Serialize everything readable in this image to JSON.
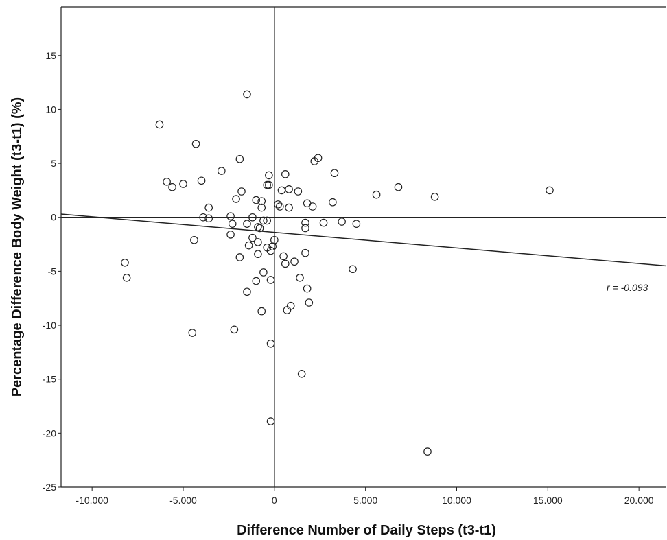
{
  "chart_data": {
    "type": "scatter",
    "xlabel": "Difference Number of Daily Steps (t3-t1)",
    "ylabel": "Percentage Difference Body Weight (t3-t1) (%)",
    "xlim": [
      -11700,
      21500
    ],
    "ylim": [
      -25,
      19.5
    ],
    "x_ticks": [
      -10000,
      -5000,
      0,
      5000,
      10000,
      15000,
      20000
    ],
    "x_tick_labels": [
      "-10.000",
      "-5.000",
      "0",
      "5.000",
      "10.000",
      "15.000",
      "20.000"
    ],
    "y_ticks": [
      -25,
      -20,
      -15,
      -10,
      -5,
      0,
      5,
      10,
      15
    ],
    "y_tick_labels": [
      "-25",
      "-20",
      "-15",
      "-10",
      "-5",
      "0",
      "5",
      "10",
      "15"
    ],
    "reference_lines": {
      "x": 0,
      "y": 0
    },
    "regression_line": {
      "x": [
        -11700,
        21500
      ],
      "y": [
        0.3,
        -4.5
      ]
    },
    "annotation": "r = -0.093",
    "points": [
      {
        "x": -6300,
        "y": 8.6
      },
      {
        "x": -4300,
        "y": 6.8
      },
      {
        "x": -5900,
        "y": 3.3
      },
      {
        "x": -5600,
        "y": 2.8
      },
      {
        "x": -5000,
        "y": 3.1
      },
      {
        "x": -4000,
        "y": 3.4
      },
      {
        "x": -2900,
        "y": 4.3
      },
      {
        "x": -1900,
        "y": 5.4
      },
      {
        "x": -1500,
        "y": 11.4
      },
      {
        "x": -1800,
        "y": 2.4
      },
      {
        "x": -2100,
        "y": 1.7
      },
      {
        "x": -3600,
        "y": 0.9
      },
      {
        "x": -3900,
        "y": 0.0
      },
      {
        "x": -3600,
        "y": -0.1
      },
      {
        "x": -2400,
        "y": 0.1
      },
      {
        "x": -2300,
        "y": -0.6
      },
      {
        "x": -4400,
        "y": -2.1
      },
      {
        "x": -2400,
        "y": -1.6
      },
      {
        "x": -1500,
        "y": -0.6
      },
      {
        "x": -1200,
        "y": 0.0
      },
      {
        "x": -1000,
        "y": 1.6
      },
      {
        "x": -700,
        "y": 1.5
      },
      {
        "x": -700,
        "y": 0.9
      },
      {
        "x": -600,
        "y": -0.3
      },
      {
        "x": -400,
        "y": -0.3
      },
      {
        "x": -900,
        "y": -0.9
      },
      {
        "x": -800,
        "y": -1.0
      },
      {
        "x": -1200,
        "y": -1.9
      },
      {
        "x": -1400,
        "y": -2.6
      },
      {
        "x": -900,
        "y": -2.3
      },
      {
        "x": -900,
        "y": -3.4
      },
      {
        "x": -1900,
        "y": -3.7
      },
      {
        "x": -400,
        "y": -2.8
      },
      {
        "x": -200,
        "y": -3.1
      },
      {
        "x": -100,
        "y": -2.7
      },
      {
        "x": 0,
        "y": -2.1
      },
      {
        "x": -300,
        "y": 3.9
      },
      {
        "x": -400,
        "y": 3.0
      },
      {
        "x": -300,
        "y": 3.0
      },
      {
        "x": 200,
        "y": 1.2
      },
      {
        "x": 300,
        "y": 1.0
      },
      {
        "x": 400,
        "y": 2.5
      },
      {
        "x": 600,
        "y": 4.0
      },
      {
        "x": 800,
        "y": 2.6
      },
      {
        "x": 800,
        "y": 0.9
      },
      {
        "x": 1300,
        "y": 2.4
      },
      {
        "x": 1800,
        "y": 1.3
      },
      {
        "x": 2100,
        "y": 1.0
      },
      {
        "x": 2200,
        "y": 5.2
      },
      {
        "x": 2400,
        "y": 5.5
      },
      {
        "x": 3300,
        "y": 4.1
      },
      {
        "x": 3200,
        "y": 1.4
      },
      {
        "x": 1700,
        "y": -0.5
      },
      {
        "x": 1700,
        "y": -1.0
      },
      {
        "x": 2700,
        "y": -0.5
      },
      {
        "x": 3700,
        "y": -0.4
      },
      {
        "x": 4500,
        "y": -0.6
      },
      {
        "x": 5600,
        "y": 2.1
      },
      {
        "x": 6800,
        "y": 2.8
      },
      {
        "x": 8800,
        "y": 1.9
      },
      {
        "x": 15100,
        "y": 2.5
      },
      {
        "x": 500,
        "y": -3.6
      },
      {
        "x": 600,
        "y": -4.3
      },
      {
        "x": 1100,
        "y": -4.1
      },
      {
        "x": 1700,
        "y": -3.3
      },
      {
        "x": 4300,
        "y": -4.8
      },
      {
        "x": -1000,
        "y": -5.9
      },
      {
        "x": -600,
        "y": -5.1
      },
      {
        "x": -200,
        "y": -5.8
      },
      {
        "x": 1400,
        "y": -5.6
      },
      {
        "x": 1800,
        "y": -6.6
      },
      {
        "x": -1500,
        "y": -6.9
      },
      {
        "x": -700,
        "y": -8.7
      },
      {
        "x": 700,
        "y": -8.6
      },
      {
        "x": 900,
        "y": -8.2
      },
      {
        "x": 1900,
        "y": -7.9
      },
      {
        "x": -8200,
        "y": -4.2
      },
      {
        "x": -8100,
        "y": -5.6
      },
      {
        "x": -4500,
        "y": -10.7
      },
      {
        "x": -2200,
        "y": -10.4
      },
      {
        "x": -200,
        "y": -11.7
      },
      {
        "x": 1500,
        "y": -14.5
      },
      {
        "x": -200,
        "y": -18.9
      },
      {
        "x": 8400,
        "y": -21.7
      }
    ]
  }
}
